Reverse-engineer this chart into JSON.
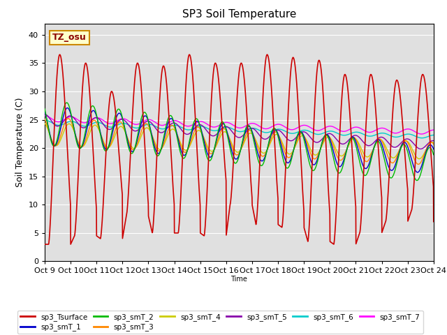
{
  "title": "SP3 Soil Temperature",
  "xlabel": "Time",
  "ylabel": "Soil Temperature (C)",
  "tz_label": "TZ_osu",
  "ylim": [
    0,
    42
  ],
  "yticks": [
    0,
    5,
    10,
    15,
    20,
    25,
    30,
    35,
    40
  ],
  "x_tick_labels": [
    "Oct 9",
    "Oct 10",
    "Oct 11",
    "Oct 12",
    "Oct 13",
    "Oct 14",
    "Oct 15",
    "Oct 16",
    "Oct 17",
    "Oct 18",
    "Oct 19",
    "Oct 20",
    "Oct 21",
    "Oct 22",
    "Oct 23",
    "Oct 24"
  ],
  "series_colors": {
    "sp3_Tsurface": "#cc0000",
    "sp3_smT_1": "#0000cc",
    "sp3_smT_2": "#00bb00",
    "sp3_smT_3": "#ff8800",
    "sp3_smT_4": "#cccc00",
    "sp3_smT_5": "#8800aa",
    "sp3_smT_6": "#00cccc",
    "sp3_smT_7": "#ff00ff"
  },
  "bg_color": "#e0e0e0",
  "fig_bg": "#ffffff",
  "n_days": 15,
  "points_per_day": 144
}
